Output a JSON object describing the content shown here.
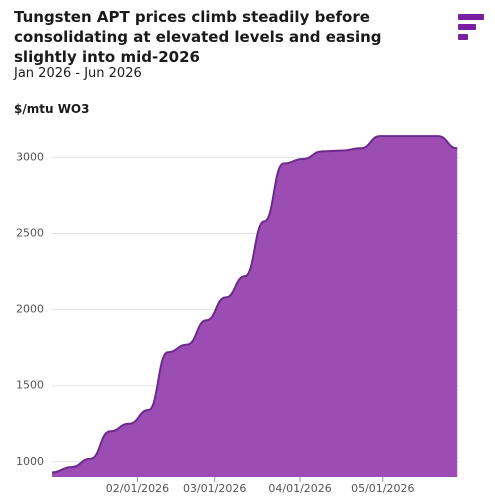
{
  "chart_data": {
    "type": "area",
    "title": "Tungsten APT prices climb steadily before consolidating at elevated levels and easing slightly into mid-2026",
    "subtitle": "Jan 2026 - Jun 2026",
    "y_label": "$/mtu WO3",
    "x": [
      "2026-01-01",
      "2026-01-08",
      "2026-01-15",
      "2026-01-22",
      "2026-01-29",
      "2026-02-05",
      "2026-02-12",
      "2026-02-19",
      "2026-02-26",
      "2026-03-05",
      "2026-03-12",
      "2026-03-19",
      "2026-03-26",
      "2026-04-02",
      "2026-04-09",
      "2026-04-16",
      "2026-04-23",
      "2026-04-30",
      "2026-05-07",
      "2026-05-14",
      "2026-05-21",
      "2026-05-28"
    ],
    "values": [
      930,
      965,
      1020,
      1200,
      1250,
      1340,
      1720,
      1770,
      1930,
      2080,
      2220,
      2580,
      2960,
      2990,
      3040,
      3045,
      3060,
      3140,
      3140,
      3140,
      3140,
      3060
    ],
    "color": "#9b4db4",
    "line_color": "#6b2a8c",
    "xlim": [
      "2026-01-01",
      "2026-05-29"
    ],
    "xticks": [
      {
        "value": "2026-02-01",
        "label": "02/01/2026"
      },
      {
        "value": "2026-03-01",
        "label": "03/01/2026"
      },
      {
        "value": "2026-04-01",
        "label": "04/01/2026"
      },
      {
        "value": "2026-05-01",
        "label": "05/01/2026"
      }
    ],
    "ylim": [
      900,
      3200
    ],
    "yticks": [
      1000,
      1500,
      2000,
      2500,
      3000
    ],
    "grid": true
  }
}
